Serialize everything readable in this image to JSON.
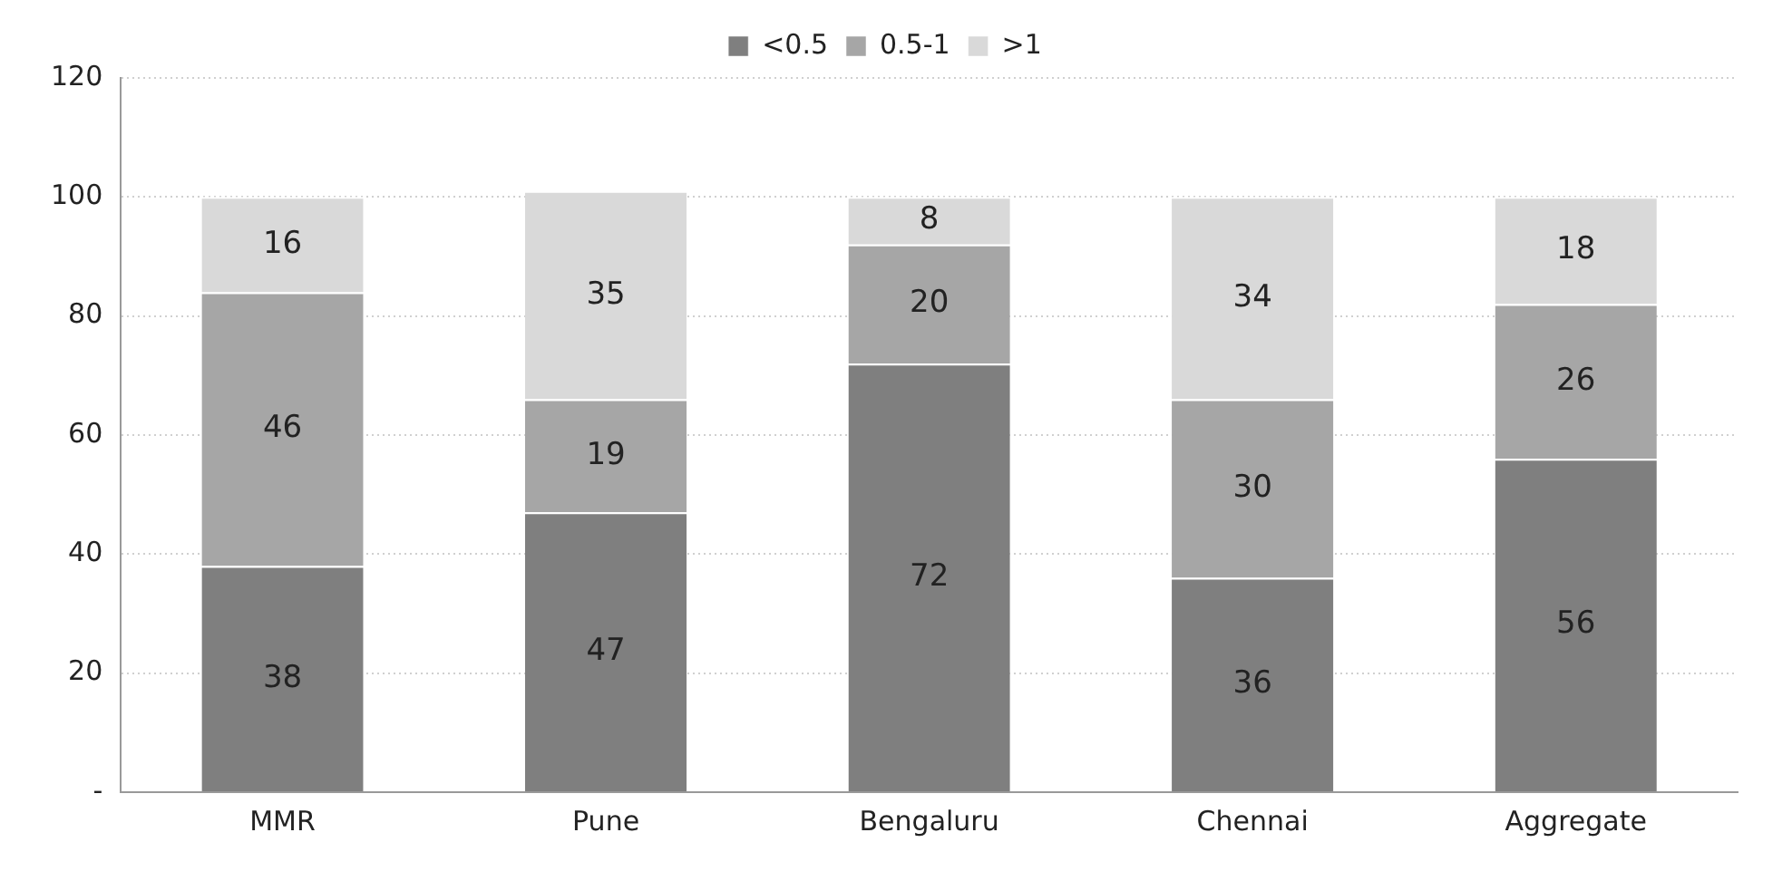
{
  "chart_data": {
    "type": "bar",
    "stacked": true,
    "categories": [
      "MMR",
      "Pune",
      "Bengaluru",
      "Chennai",
      "Aggregate"
    ],
    "series": [
      {
        "name": "<0.5",
        "color": "#7f7f7f",
        "values": [
          38,
          47,
          72,
          36,
          56
        ]
      },
      {
        "name": "0.5-1",
        "color": "#a6a6a6",
        "values": [
          46,
          19,
          20,
          30,
          26
        ]
      },
      {
        "name": ">1",
        "color": "#d9d9d9",
        "values": [
          16,
          35,
          8,
          34,
          18
        ]
      }
    ],
    "ylim": [
      0,
      120
    ],
    "yticks": [
      {
        "value": 0,
        "label": "-"
      },
      20,
      40,
      60,
      80,
      100,
      120
    ],
    "grid": "y",
    "legend": "top",
    "data_labels": true
  }
}
